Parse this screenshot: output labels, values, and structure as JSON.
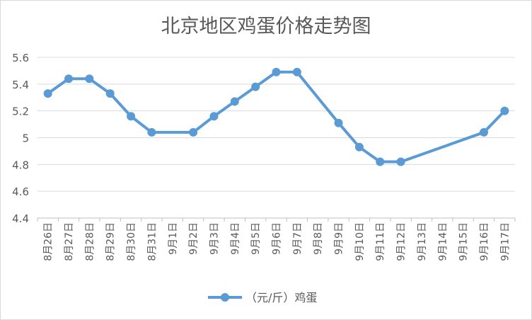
{
  "chart_data": {
    "type": "line",
    "title": "北京地区鸡蛋价格走势图",
    "xlabel": "",
    "ylabel": "",
    "ylim": [
      4.4,
      5.6
    ],
    "yticks": [
      4.4,
      4.6,
      4.8,
      5,
      5.2,
      5.4,
      5.6
    ],
    "grid": true,
    "legend_position": "bottom",
    "categories": [
      "8月26日",
      "8月27日",
      "8月28日",
      "8月29日",
      "8月30日",
      "8月31日",
      "9月1日",
      "9月2日",
      "9月3日",
      "9月4日",
      "9月5日",
      "9月6日",
      "9月7日",
      "9月8日",
      "9月9日",
      "9月10日",
      "9月11日",
      "9月12日",
      "9月13日",
      "9月14日",
      "9月15日",
      "9月16日",
      "9月17日"
    ],
    "series": [
      {
        "name": "（元/斤）鸡蛋",
        "color": "#5b9bd5",
        "values": [
          5.33,
          5.44,
          5.44,
          5.33,
          5.16,
          5.04,
          null,
          5.04,
          5.16,
          5.27,
          5.38,
          5.49,
          5.49,
          null,
          5.11,
          4.93,
          4.82,
          4.82,
          null,
          null,
          null,
          5.04,
          5.2
        ]
      }
    ]
  },
  "colors": {
    "line": "#5b9bd5",
    "grid": "#d9d9d9",
    "axis": "#bfbfbf",
    "text": "#595959"
  }
}
